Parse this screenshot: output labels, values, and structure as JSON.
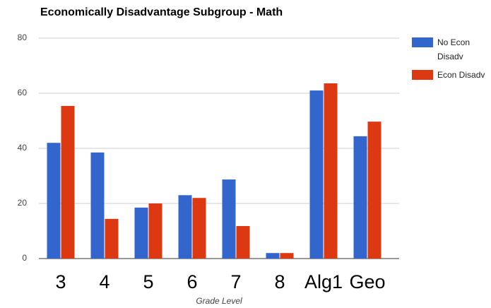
{
  "chart_data": {
    "type": "bar",
    "title": "Economically Disadvantage Subgroup - Math",
    "x_label": "Grade Level",
    "categories": [
      "3",
      "4",
      "5",
      "6",
      "7",
      "8",
      "Alg1",
      "Geo"
    ],
    "series": [
      {
        "name": "No Econ Disadv",
        "color": "#3366cc",
        "values": [
          42,
          38.5,
          18.5,
          23,
          28.7,
          2,
          61,
          44.4
        ]
      },
      {
        "name": "Econ Disadv",
        "color": "#dc3912",
        "values": [
          55.4,
          14.4,
          20,
          22,
          11.8,
          2,
          63.6,
          49.7
        ]
      }
    ],
    "ylim": [
      0,
      80
    ],
    "yticks": [
      0,
      20,
      40,
      60,
      80
    ],
    "grid": true,
    "legend": "right"
  }
}
